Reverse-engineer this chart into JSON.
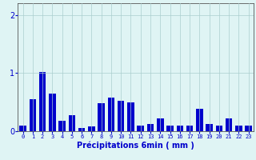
{
  "categories": [
    0,
    1,
    2,
    3,
    4,
    5,
    6,
    7,
    8,
    9,
    10,
    11,
    12,
    13,
    14,
    15,
    16,
    17,
    18,
    19,
    20,
    21,
    22,
    23
  ],
  "values": [
    0.1,
    0.55,
    1.02,
    0.65,
    0.18,
    0.28,
    0.05,
    0.08,
    0.48,
    0.58,
    0.52,
    0.5,
    0.1,
    0.12,
    0.22,
    0.1,
    0.1,
    0.1,
    0.38,
    0.12,
    0.1,
    0.22,
    0.1,
    0.1
  ],
  "xlabel": "Précipitations 6min ( mm )",
  "ylim": [
    0,
    2.2
  ],
  "yticks": [
    0,
    1,
    2
  ],
  "bar_color": "#0000cc",
  "background_color": "#dff4f4",
  "grid_color": "#aacece",
  "axis_color": "#555555",
  "tick_label_color": "#0000cc",
  "xlabel_color": "#0000cc"
}
